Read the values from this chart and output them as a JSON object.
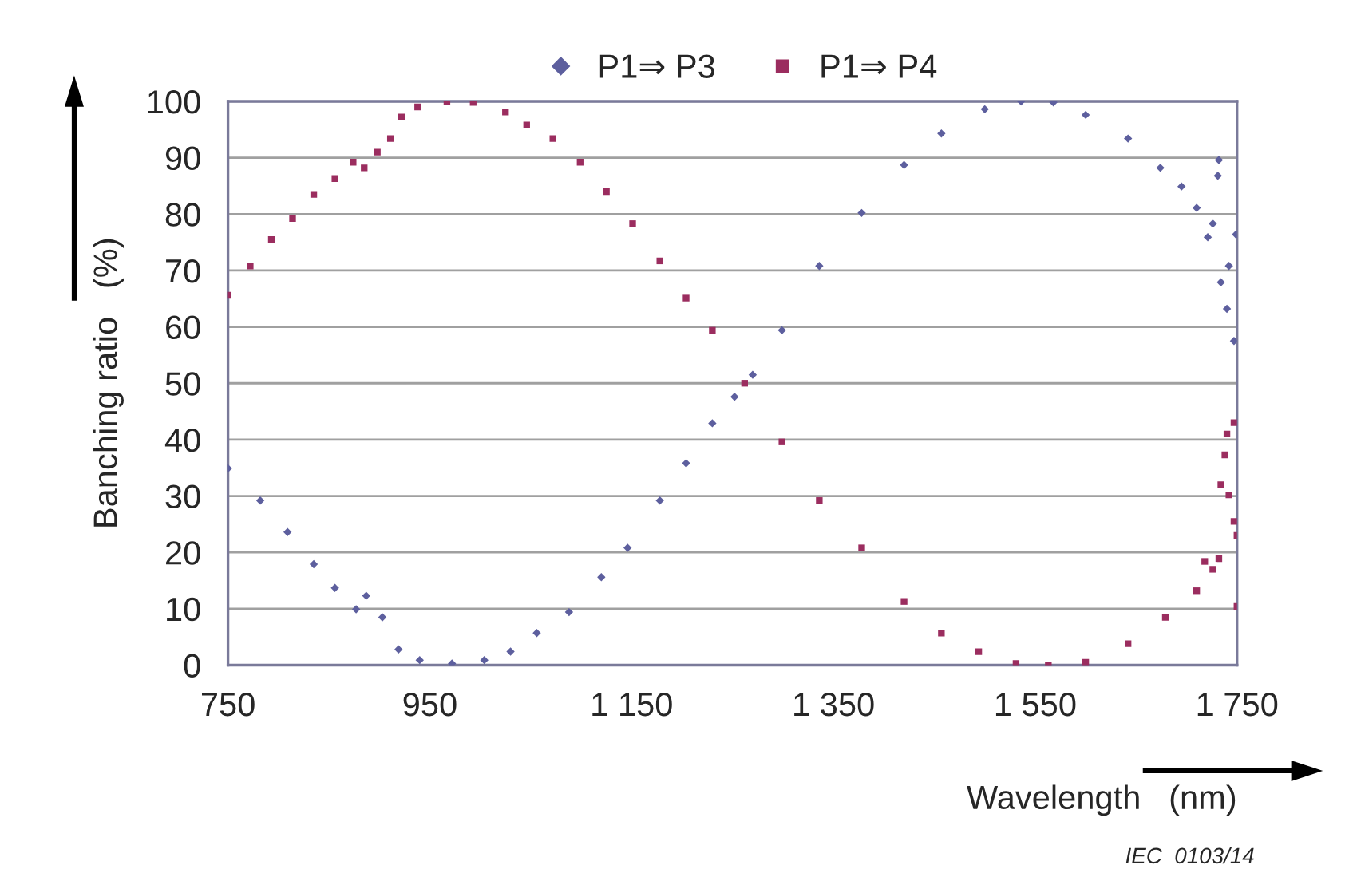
{
  "chart_data": {
    "type": "scatter",
    "xlabel": "Wavelength   (nm)",
    "ylabel": "Banching ratio   (%)",
    "xlim": [
      750,
      1750
    ],
    "ylim": [
      0,
      100
    ],
    "xticks": [
      750,
      950,
      {
        "value": 1150,
        "label": "1 150"
      },
      {
        "value": 1350,
        "label": "1 350"
      },
      {
        "value": 1550,
        "label": "1 550"
      },
      {
        "value": 1750,
        "label": "1 750"
      }
    ],
    "yticks": [
      0,
      10,
      20,
      30,
      40,
      50,
      60,
      70,
      80,
      90,
      100
    ],
    "grid": "y",
    "legend": "top",
    "annotations": [
      "IEC  0103/14"
    ],
    "series": [
      {
        "name": "P1⇒ P3",
        "color": "#5d5f9e",
        "marker": "diamond",
        "x": [
          750,
          782,
          809,
          835,
          856,
          877,
          887,
          903,
          919,
          940,
          972,
          1004,
          1030,
          1056,
          1088,
          1120,
          1146,
          1178,
          1204,
          1230,
          1252,
          1270,
          1299,
          1336,
          1378,
          1420,
          1457,
          1500,
          1536,
          1568,
          1600,
          1642,
          1674,
          1695,
          1710,
          1726,
          1732,
          1731,
          1721,
          1734,
          1740,
          1747,
          1742,
          1749
        ],
        "values": [
          34.9,
          29.2,
          23.6,
          17.9,
          13.7,
          9.9,
          12.3,
          8.5,
          2.8,
          0.9,
          0.3,
          0.9,
          2.4,
          5.7,
          9.4,
          15.6,
          20.8,
          29.2,
          35.8,
          42.9,
          47.6,
          51.5,
          59.4,
          70.8,
          80.2,
          88.7,
          94.3,
          98.6,
          100,
          99.8,
          97.6,
          93.4,
          88.2,
          84.9,
          81.1,
          78.3,
          89.6,
          86.8,
          75.9,
          67.9,
          63.2,
          57.5,
          70.8,
          76.4
        ]
      },
      {
        "name": "P1⇒ P4",
        "color": "#9b2d5f",
        "marker": "square",
        "x": [
          750,
          772,
          793,
          814,
          835,
          856,
          874,
          885,
          898,
          911,
          922,
          938,
          967,
          993,
          1025,
          1046,
          1072,
          1099,
          1125,
          1151,
          1178,
          1204,
          1230,
          1262,
          1299,
          1336,
          1378,
          1420,
          1457,
          1494,
          1531,
          1563,
          1600,
          1642,
          1679,
          1710,
          1732,
          1740,
          1747,
          1738,
          1742,
          1747,
          1750,
          1750,
          1734,
          1726,
          1718
        ],
        "values": [
          65.6,
          70.8,
          75.5,
          79.2,
          83.5,
          86.3,
          89.2,
          88.2,
          91,
          93.4,
          97.2,
          99,
          100,
          99.8,
          98.1,
          95.8,
          93.4,
          89.2,
          84,
          78.3,
          71.7,
          65.1,
          59.4,
          50,
          39.6,
          29.2,
          20.8,
          11.3,
          5.7,
          2.4,
          0.3,
          0,
          0.5,
          3.8,
          8.5,
          13.2,
          18.9,
          41,
          43,
          37.3,
          30.2,
          25.5,
          23,
          10.4,
          32,
          17,
          18.4
        ]
      }
    ]
  }
}
